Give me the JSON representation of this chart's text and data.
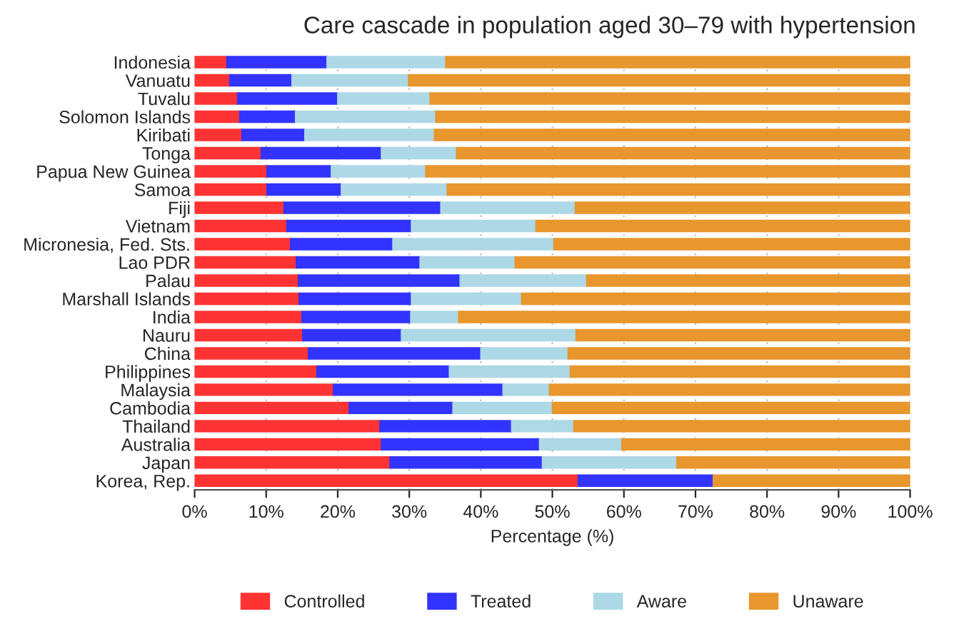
{
  "chart_data": {
    "type": "bar",
    "orientation": "horizontal",
    "stacked": true,
    "title": "Care cascade in population aged 30–79 with hypertension",
    "xlabel": "Percentage (%)",
    "categories": [
      "Indonesia",
      "Vanuatu",
      "Tuvalu",
      "Solomon Islands",
      "Kiribati",
      "Tonga",
      "Papua New Guinea",
      "Samoa",
      "Fiji",
      "Vietnam",
      "Micronesia, Fed. Sts.",
      "Lao PDR",
      "Palau",
      "Marshall Islands",
      "India",
      "Nauru",
      "China",
      "Philippines",
      "Malaysia",
      "Cambodia",
      "Thailand",
      "Australia",
      "Japan",
      "Korea, Rep."
    ],
    "series": [
      {
        "name": "Controlled",
        "color": "#ff3333",
        "values": [
          4.5,
          4.9,
          6.0,
          6.3,
          6.6,
          9.3,
          10.1,
          10.1,
          12.5,
          12.9,
          13.4,
          14.2,
          14.5,
          14.6,
          15.0,
          15.1,
          15.9,
          17.1,
          19.4,
          21.6,
          25.9,
          26.1,
          27.3,
          53.6
        ]
      },
      {
        "name": "Treated",
        "color": "#3333ff",
        "values": [
          14.0,
          8.7,
          14.0,
          7.8,
          8.8,
          16.8,
          9.0,
          10.4,
          21.9,
          17.4,
          14.3,
          17.3,
          22.6,
          15.7,
          15.2,
          13.8,
          24.1,
          18.5,
          23.7,
          14.5,
          18.4,
          22.1,
          21.3,
          18.9
        ]
      },
      {
        "name": "Aware",
        "color": "#add8e6",
        "values": [
          16.6,
          16.3,
          12.9,
          19.6,
          18.1,
          10.5,
          13.2,
          14.8,
          18.8,
          17.4,
          22.5,
          13.3,
          17.7,
          15.4,
          6.7,
          24.4,
          12.2,
          16.9,
          6.5,
          13.9,
          8.7,
          11.5,
          18.8,
          0
        ]
      },
      {
        "name": "Unaware",
        "color": "#e8962e",
        "values": [
          64.9,
          70.1,
          67.1,
          66.3,
          66.5,
          63.4,
          67.7,
          64.7,
          46.8,
          52.3,
          49.8,
          55.2,
          45.2,
          54.3,
          63.1,
          46.7,
          47.8,
          47.5,
          50.4,
          50.0,
          47.0,
          40.3,
          32.6,
          27.5
        ]
      }
    ],
    "xlim": [
      0,
      100
    ],
    "xticks": [
      {
        "value": 0,
        "label": "0%"
      },
      {
        "value": 10,
        "label": "10%"
      },
      {
        "value": 20,
        "label": "20%"
      },
      {
        "value": 30,
        "label": "30%"
      },
      {
        "value": 40,
        "label": "40%"
      },
      {
        "value": 50,
        "label": "50%"
      },
      {
        "value": 60,
        "label": "60%"
      },
      {
        "value": 70,
        "label": "70%"
      },
      {
        "value": 80,
        "label": "80%"
      },
      {
        "value": 90,
        "label": "90%"
      },
      {
        "value": 100,
        "label": "100%"
      }
    ],
    "grid": "x",
    "legend": "bottom"
  }
}
